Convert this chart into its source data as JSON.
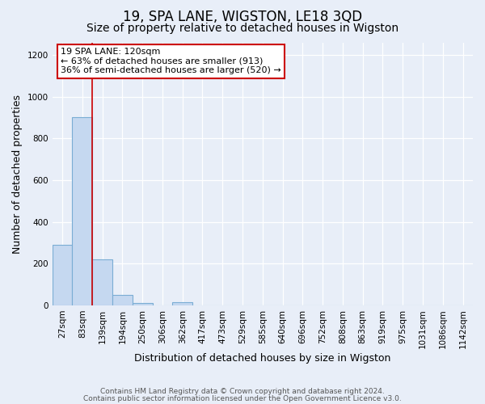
{
  "title": "19, SPA LANE, WIGSTON, LE18 3QD",
  "subtitle": "Size of property relative to detached houses in Wigston",
  "xlabel": "Distribution of detached houses by size in Wigston",
  "ylabel": "Number of detached properties",
  "footnote1": "Contains HM Land Registry data © Crown copyright and database right 2024.",
  "footnote2": "Contains public sector information licensed under the Open Government Licence v3.0.",
  "bin_labels": [
    "27sqm",
    "83sqm",
    "139sqm",
    "194sqm",
    "250sqm",
    "306sqm",
    "362sqm",
    "417sqm",
    "473sqm",
    "529sqm",
    "585sqm",
    "640sqm",
    "696sqm",
    "752sqm",
    "808sqm",
    "863sqm",
    "919sqm",
    "975sqm",
    "1031sqm",
    "1086sqm",
    "1142sqm"
  ],
  "bar_heights": [
    290,
    900,
    220,
    50,
    10,
    0,
    15,
    0,
    0,
    0,
    0,
    0,
    0,
    0,
    0,
    0,
    0,
    0,
    0,
    0,
    0
  ],
  "bar_color": "#c5d8f0",
  "bar_edge_color": "#7aadd4",
  "background_color": "#e8eef8",
  "ylim": [
    0,
    1260
  ],
  "yticks": [
    0,
    200,
    400,
    600,
    800,
    1000,
    1200
  ],
  "property_line_x": 2.0,
  "property_line_color": "#cc0000",
  "annotation_text": "19 SPA LANE: 120sqm\n← 63% of detached houses are smaller (913)\n36% of semi-detached houses are larger (520) →",
  "annotation_box_color": "#ffffff",
  "annotation_box_edge_color": "#cc0000",
  "title_fontsize": 12,
  "subtitle_fontsize": 10,
  "axis_label_fontsize": 9,
  "tick_fontsize": 7.5,
  "footnote_fontsize": 6.5,
  "annot_fontsize": 8
}
